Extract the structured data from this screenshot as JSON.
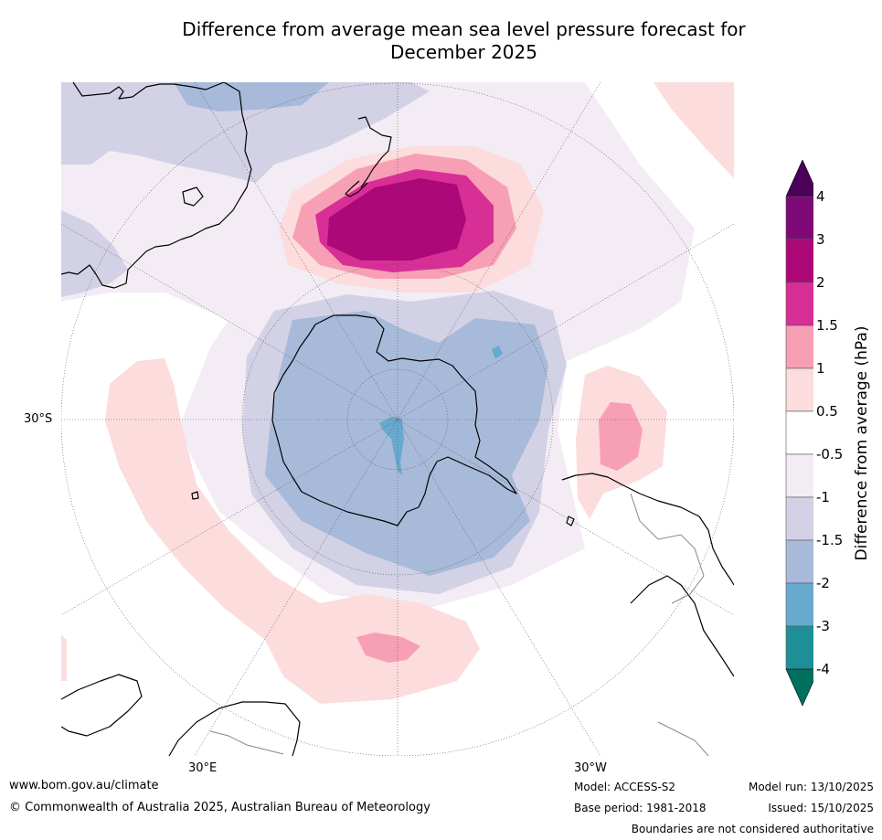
{
  "title_line1": "Difference from average mean sea level pressure forecast for",
  "title_line2": "December 2025",
  "map": {
    "lat_label": "30°S",
    "lon_label_east": "30°E",
    "lon_label_west": "30°W"
  },
  "colorbar": {
    "title": "Difference from average (hPa)",
    "tick_labels": [
      "4",
      "3",
      "2",
      "1.5",
      "1",
      "0.5",
      "-0.5",
      "-1",
      "-1.5",
      "-2",
      "-3",
      "-4"
    ],
    "level_colors": [
      "#4b0059",
      "#7f0a77",
      "#ad0878",
      "#d72f96",
      "#f79fb5",
      "#fcdcdd",
      "#ffffff",
      "#f3ecf4",
      "#d2d1e6",
      "#a8bad9",
      "#67a9cf",
      "#1f8f97",
      "#00705e"
    ]
  },
  "footer": {
    "website": "www.bom.gov.au/climate",
    "copyright": "© Commonwealth of Australia 2025, Australian Bureau of Meteorology",
    "model": "Model: ACCESS-S2",
    "base_period": "Base period: 1981-2018",
    "model_run": "Model run: 13/10/2025",
    "issued": "Issued: 15/10/2025",
    "disclaimer": "Boundaries are not considered authoritative"
  }
}
